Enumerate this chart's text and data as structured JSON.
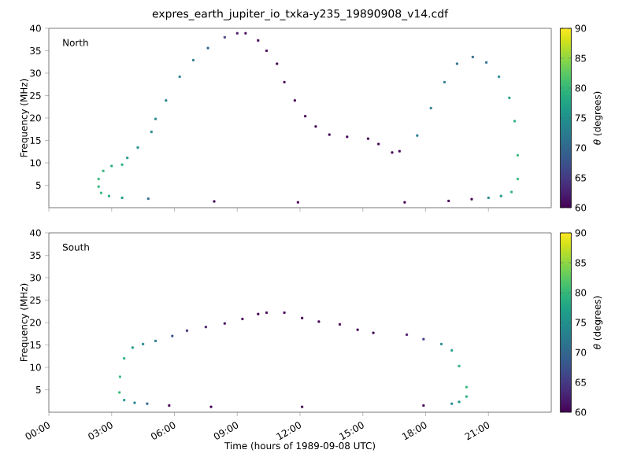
{
  "chart_data": [
    {
      "type": "scatter",
      "title": "expres_earth_jupiter_io_txka-y235_19890908_v14.cdf",
      "ylabel": "Frequency (MHz)",
      "clabel": "*θ* (degrees)",
      "annotations": [
        "North"
      ],
      "marker": "square",
      "tick_labels": "y",
      "xlim": [
        0,
        24
      ],
      "xticks": [
        {
          "value": 0,
          "label": null
        },
        {
          "value": 3,
          "label": null
        },
        {
          "value": 6,
          "label": null
        },
        {
          "value": 9,
          "label": null
        },
        {
          "value": 12,
          "label": null
        },
        {
          "value": 15,
          "label": null
        },
        {
          "value": 18,
          "label": null
        },
        {
          "value": 21,
          "label": null
        }
      ],
      "ylim": [
        0,
        40
      ],
      "yticks": [
        5,
        10,
        15,
        20,
        25,
        30,
        35,
        40
      ],
      "clim": [
        60,
        90
      ],
      "cticks": [
        60,
        65,
        70,
        75,
        80,
        85,
        90
      ],
      "series": [
        {
          "x": [
            2.375,
            2.5,
            2.875,
            3.5,
            2.375,
            2.6,
            3.0,
            3.5,
            3.75,
            4.25,
            4.9,
            5.1,
            5.6,
            6.25,
            6.9,
            7.6,
            8.4,
            9.0,
            9.4,
            10.0,
            10.4,
            10.9,
            11.25,
            11.75,
            12.25,
            12.75,
            13.4,
            14.25,
            15.25,
            15.75,
            16.4,
            16.75,
            17.6,
            18.25,
            18.9,
            19.5,
            20.25,
            20.9,
            21.5,
            22.0,
            22.25,
            22.4,
            22.4,
            22.1,
            21.6,
            21.0,
            4.75,
            7.9,
            11.9,
            17.0,
            19.1,
            20.2
          ],
          "values": [
            4.7,
            3.3,
            2.6,
            2.2,
            6.4,
            8.2,
            9.3,
            9.6,
            11.1,
            13.4,
            16.9,
            19.8,
            23.9,
            29.2,
            32.9,
            35.6,
            38.0,
            38.9,
            38.9,
            37.3,
            35.0,
            32.1,
            28.0,
            23.9,
            20.4,
            18.1,
            16.3,
            15.8,
            15.4,
            14.2,
            12.3,
            12.6,
            16.1,
            22.2,
            28.0,
            32.1,
            33.6,
            32.4,
            29.2,
            24.5,
            19.3,
            11.7,
            6.4,
            3.5,
            2.6,
            2.2,
            2.0,
            1.4,
            1.2,
            1.2,
            1.5,
            1.9
          ],
          "cvalues": [
            80,
            80,
            78,
            76,
            80,
            80,
            79,
            79,
            76,
            75,
            74,
            74,
            73,
            73,
            72,
            70,
            66,
            62,
            61,
            60,
            60,
            60,
            60,
            60,
            60,
            60,
            60,
            60,
            60,
            60,
            60,
            60,
            73,
            73,
            72,
            71,
            70,
            71,
            74,
            77,
            79,
            80,
            80,
            79,
            76,
            74,
            70,
            60,
            60,
            60,
            60,
            60
          ]
        }
      ]
    },
    {
      "type": "scatter",
      "xlabel": "Time (hours of 1989-09-08 UTC)",
      "ylabel": "Frequency (MHz)",
      "clabel": "*θ* (degrees)",
      "annotations": [
        "South"
      ],
      "marker": "square",
      "xlim": [
        0,
        24
      ],
      "xticks": [
        {
          "value": 0,
          "label": "00:00"
        },
        {
          "value": 3,
          "label": "03:00"
        },
        {
          "value": 6,
          "label": "06:00"
        },
        {
          "value": 9,
          "label": "09:00"
        },
        {
          "value": 12,
          "label": "12:00"
        },
        {
          "value": 15,
          "label": "15:00"
        },
        {
          "value": 18,
          "label": "18:00"
        },
        {
          "value": 21,
          "label": "21:00"
        }
      ],
      "ylim": [
        0,
        40
      ],
      "yticks": [
        5,
        10,
        15,
        20,
        25,
        30,
        35,
        40
      ],
      "clim": [
        60,
        90
      ],
      "cticks": [
        60,
        65,
        70,
        75,
        80,
        85,
        90
      ],
      "series": [
        {
          "x": [
            3.375,
            3.4,
            3.6,
            4.0,
            4.5,
            5.1,
            5.9,
            6.6,
            7.5,
            8.4,
            9.25,
            10.0,
            10.4,
            11.25,
            12.1,
            12.9,
            13.9,
            14.75,
            15.5,
            17.1,
            17.9,
            18.75,
            19.25,
            19.6,
            19.95,
            19.95,
            19.6,
            19.25,
            3.6,
            4.1,
            4.7,
            5.75,
            7.75,
            12.1,
            17.9
          ],
          "values": [
            4.4,
            7.9,
            12.0,
            14.4,
            15.2,
            15.9,
            17.0,
            18.2,
            19.0,
            19.8,
            20.8,
            21.9,
            22.2,
            22.2,
            21.0,
            20.2,
            19.6,
            18.4,
            17.7,
            17.3,
            16.3,
            15.2,
            13.8,
            10.3,
            5.6,
            3.5,
            2.3,
            1.9,
            2.7,
            2.1,
            1.9,
            1.5,
            1.2,
            1.2,
            1.5
          ],
          "cvalues": [
            80,
            80,
            79,
            76,
            74,
            72,
            68,
            64,
            62,
            61,
            60,
            60,
            60,
            60,
            60,
            60,
            60,
            60,
            60,
            62,
            66,
            74,
            77,
            79,
            80,
            79,
            76,
            74,
            76,
            74,
            70,
            60,
            60,
            60,
            60
          ]
        }
      ]
    }
  ]
}
